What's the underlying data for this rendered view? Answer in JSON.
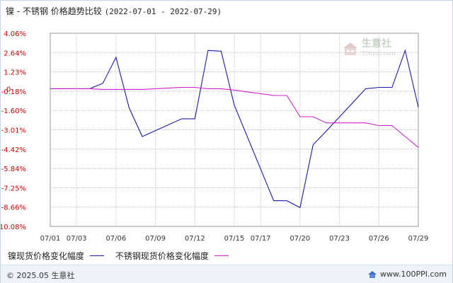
{
  "header": {
    "title_main": "镍 - 不锈钢 价格趋势比较",
    "title_dates": "(2022-07-01 - 2022-07-29)"
  },
  "watermark": {
    "name": "生意社",
    "url": "100ppi.com",
    "icon": "house-logo-icon"
  },
  "footer": {
    "copyright": "© 2025.05 生意社",
    "site": "www.100PPI.com",
    "site_icon": "blue-house-icon"
  },
  "colors": {
    "nickel": "#1a1aa0",
    "stainless": "#cc22cc",
    "grid": "#bfbfbf",
    "axis_text_y": "#cc0000"
  },
  "chart_data": {
    "type": "line",
    "xlabel": "",
    "ylabel": "",
    "y_ticks": [
      "4.06%",
      "2.64%",
      "1.23%",
      "-0.18%",
      "-1.60%",
      "-3.01%",
      "-4.42%",
      "-5.84%",
      "-7.25%",
      "-8.66%",
      "-10.08%"
    ],
    "ylim": [
      -10.08,
      4.06
    ],
    "zero_label": "0",
    "x_ticks": [
      "07/01",
      "07/03",
      "07/06",
      "07/09",
      "07/12",
      "07/15",
      "07/17",
      "07/20",
      "07/23",
      "07/26",
      "07/29"
    ],
    "grid": true,
    "legend_position": "bottom-left",
    "series": [
      {
        "name": "镍现货价格变化幅度",
        "x": [
          "07/01",
          "07/04",
          "07/05",
          "07/06",
          "07/07",
          "07/08",
          "07/11",
          "07/12",
          "07/13",
          "07/14",
          "07/15",
          "07/18",
          "07/19",
          "07/20",
          "07/21",
          "07/22",
          "07/25",
          "07/26",
          "07/27",
          "07/28",
          "07/29"
        ],
        "values": [
          0,
          0.0,
          0.4,
          2.3,
          -1.4,
          -3.5,
          -2.2,
          -2.2,
          2.8,
          2.75,
          -1.2,
          -8.2,
          -8.2,
          -8.7,
          -4.1,
          -3.1,
          0.0,
          0.1,
          0.1,
          2.8,
          -1.35
        ]
      },
      {
        "name": "不锈钢现货价格变化幅度",
        "x": [
          "07/01",
          "07/04",
          "07/05",
          "07/06",
          "07/07",
          "07/08",
          "07/11",
          "07/12",
          "07/13",
          "07/14",
          "07/15",
          "07/18",
          "07/19",
          "07/20",
          "07/21",
          "07/22",
          "07/25",
          "07/26",
          "07/27",
          "07/28",
          "07/29"
        ],
        "values": [
          0,
          0.0,
          -0.05,
          -0.05,
          -0.05,
          -0.05,
          0.1,
          0.1,
          0.0,
          0.0,
          -0.1,
          -0.5,
          -0.5,
          -2.05,
          -2.05,
          -2.5,
          -2.5,
          -2.7,
          -2.7,
          -3.5,
          -4.3
        ]
      }
    ]
  }
}
